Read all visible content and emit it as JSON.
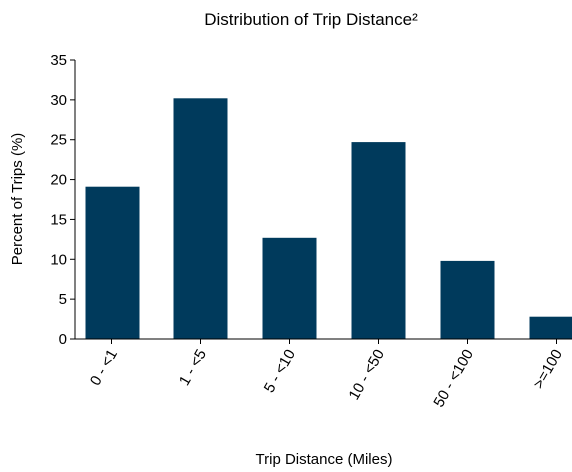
{
  "chart_data": {
    "type": "bar",
    "title": "Distribution of Trip Distance²",
    "xlabel": "Trip Distance (Miles)",
    "ylabel": "Percent of Trips (%)",
    "categories": [
      "0 - <1",
      "1 - <5",
      "5 - <10",
      "10 - <50",
      "50 - <100",
      ">=100"
    ],
    "values": [
      19.1,
      30.2,
      12.7,
      24.7,
      9.8,
      2.8
    ],
    "ylim": [
      0,
      35
    ],
    "yticks": [
      "0",
      "5",
      "10",
      "15",
      "20",
      "25",
      "30",
      "35"
    ],
    "grid": false,
    "bar_color": "#003a5c"
  }
}
